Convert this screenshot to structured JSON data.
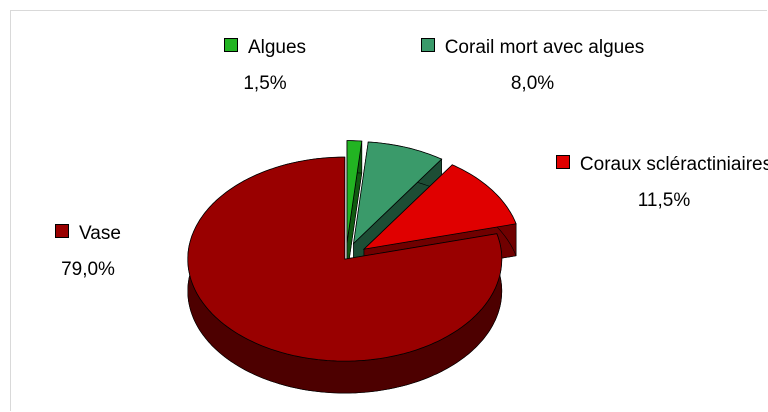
{
  "chart_data": {
    "type": "pie3d",
    "categories": [
      "Algues",
      "Corail mort avec algues",
      "Coraux scléractiniaires",
      "Vase"
    ],
    "values": [
      1.5,
      8.0,
      11.5,
      79.0
    ],
    "value_labels": [
      "1,5%",
      "8,0%",
      "11,5%",
      "79,0%"
    ],
    "colors": [
      "#22b422",
      "#3a9a6a",
      "#e00000",
      "#990000"
    ]
  }
}
